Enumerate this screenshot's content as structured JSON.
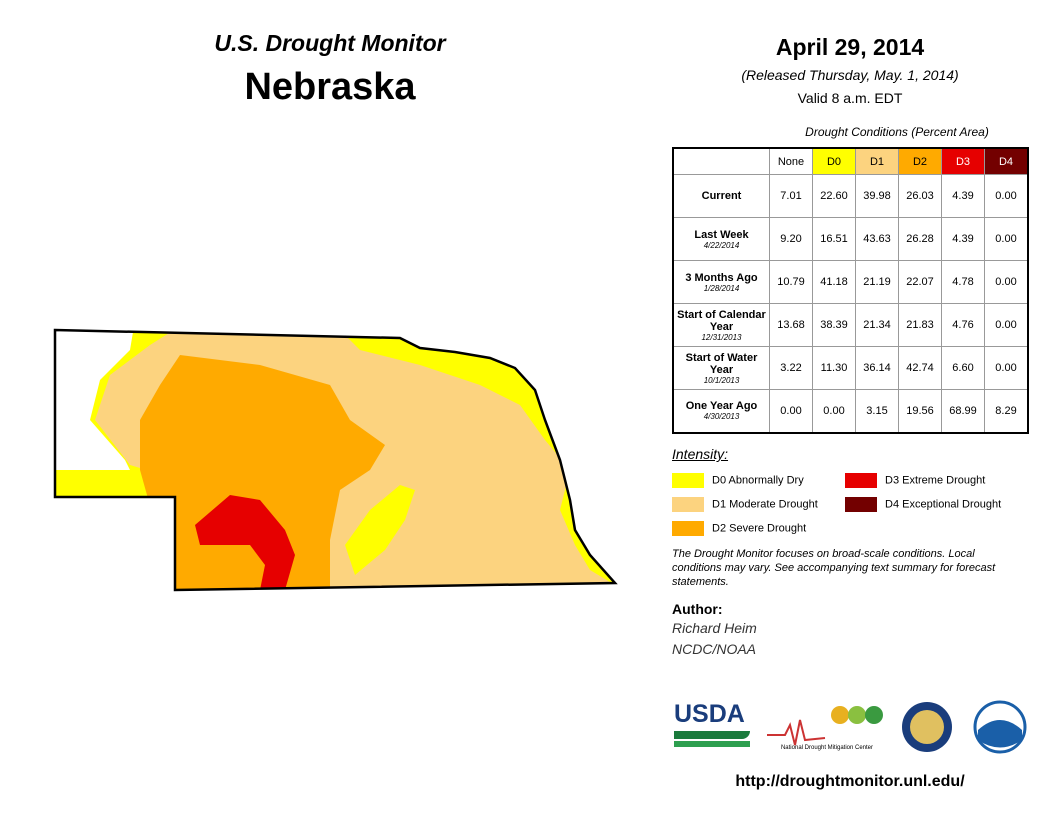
{
  "header": {
    "title": "U.S. Drought Monitor",
    "state": "Nebraska",
    "date": "April 29, 2014",
    "released": "(Released Thursday, May. 1, 2014)",
    "valid": "Valid 8 a.m. EDT"
  },
  "table": {
    "caption": "Drought Conditions (Percent Area)",
    "columns": [
      "None",
      "D0",
      "D1",
      "D2",
      "D3",
      "D4"
    ],
    "rows": [
      {
        "label": "Current",
        "date": "",
        "values": [
          "7.01",
          "22.60",
          "39.98",
          "26.03",
          "4.39",
          "0.00"
        ]
      },
      {
        "label": "Last Week",
        "date": "4/22/2014",
        "values": [
          "9.20",
          "16.51",
          "43.63",
          "26.28",
          "4.39",
          "0.00"
        ]
      },
      {
        "label": "3 Months Ago",
        "date": "1/28/2014",
        "values": [
          "10.79",
          "41.18",
          "21.19",
          "22.07",
          "4.78",
          "0.00"
        ]
      },
      {
        "label": "Start of Calendar Year",
        "date": "12/31/2013",
        "values": [
          "13.68",
          "38.39",
          "21.34",
          "21.83",
          "4.76",
          "0.00"
        ]
      },
      {
        "label": "Start of Water Year",
        "date": "10/1/2013",
        "values": [
          "3.22",
          "11.30",
          "36.14",
          "42.74",
          "6.60",
          "0.00"
        ]
      },
      {
        "label": "One Year Ago",
        "date": "4/30/2013",
        "values": [
          "0.00",
          "0.00",
          "3.15",
          "19.56",
          "68.99",
          "8.29"
        ]
      }
    ]
  },
  "legend": {
    "title": "Intensity:",
    "items": [
      "D0 Abnormally Dry",
      "D1 Moderate Drought",
      "D2 Severe Drought",
      "D3 Extreme Drought",
      "D4 Exceptional Drought"
    ]
  },
  "note": "The Drought Monitor focuses on broad-scale conditions. Local conditions may vary. See accompanying text summary for forecast statements.",
  "author": {
    "label": "Author:",
    "name": "Richard Heim",
    "org": "NCDC/NOAA"
  },
  "logos": {
    "usda": "USDA",
    "ndmc": "National Drought Mitigation Center"
  },
  "url": "http://droughtmonitor.unl.edu/"
}
